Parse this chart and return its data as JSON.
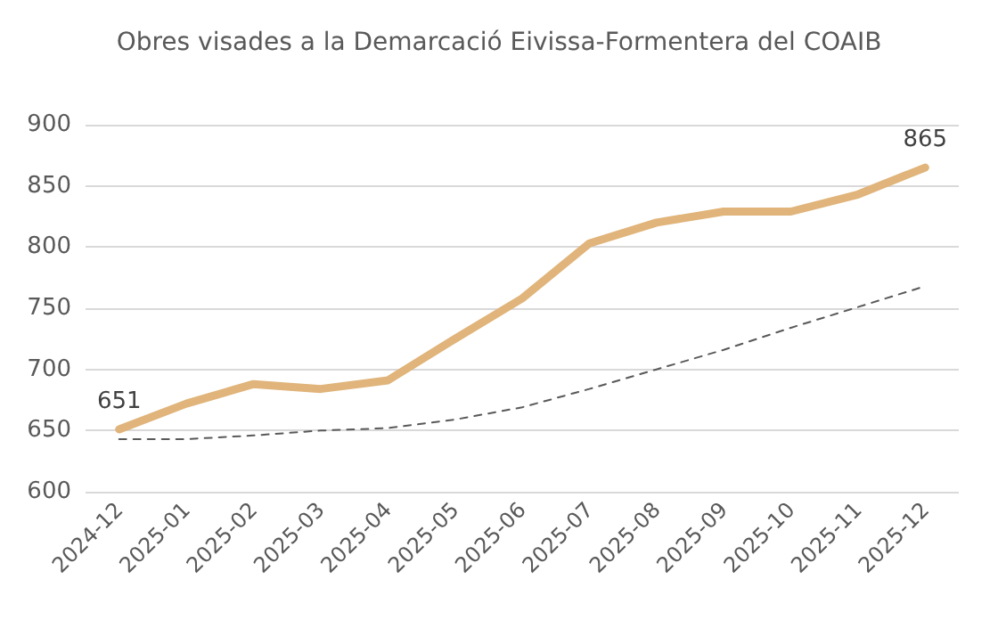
{
  "chart_data": {
    "type": "line",
    "title": "Obres visades a la Demarcació Eivissa-Formentera del COAIB",
    "categories": [
      "2024-12",
      "2025-01",
      "2025-02",
      "2025-03",
      "2025-04",
      "2025-05",
      "2025-06",
      "2025-07",
      "2025-08",
      "2025-09",
      "2025-10",
      "2025-11",
      "2025-12"
    ],
    "series": [
      {
        "color": "#e0b47a",
        "values": [
          651,
          672,
          688,
          684,
          691,
          725,
          758,
          803,
          820,
          829,
          829,
          843,
          865
        ],
        "value_labels": [
          "651",
          null,
          null,
          null,
          null,
          null,
          null,
          null,
          null,
          null,
          null,
          null,
          "865"
        ]
      },
      {
        "color": "#595959",
        "line_style": "dashed",
        "values": [
          643,
          643,
          646,
          650,
          652,
          659,
          669,
          684,
          700,
          716,
          734,
          751,
          768
        ]
      }
    ],
    "ylim": [
      600,
      900
    ],
    "yticks": [
      600,
      650,
      700,
      750,
      800,
      850,
      900
    ],
    "grid": "y",
    "marker": "none"
  }
}
